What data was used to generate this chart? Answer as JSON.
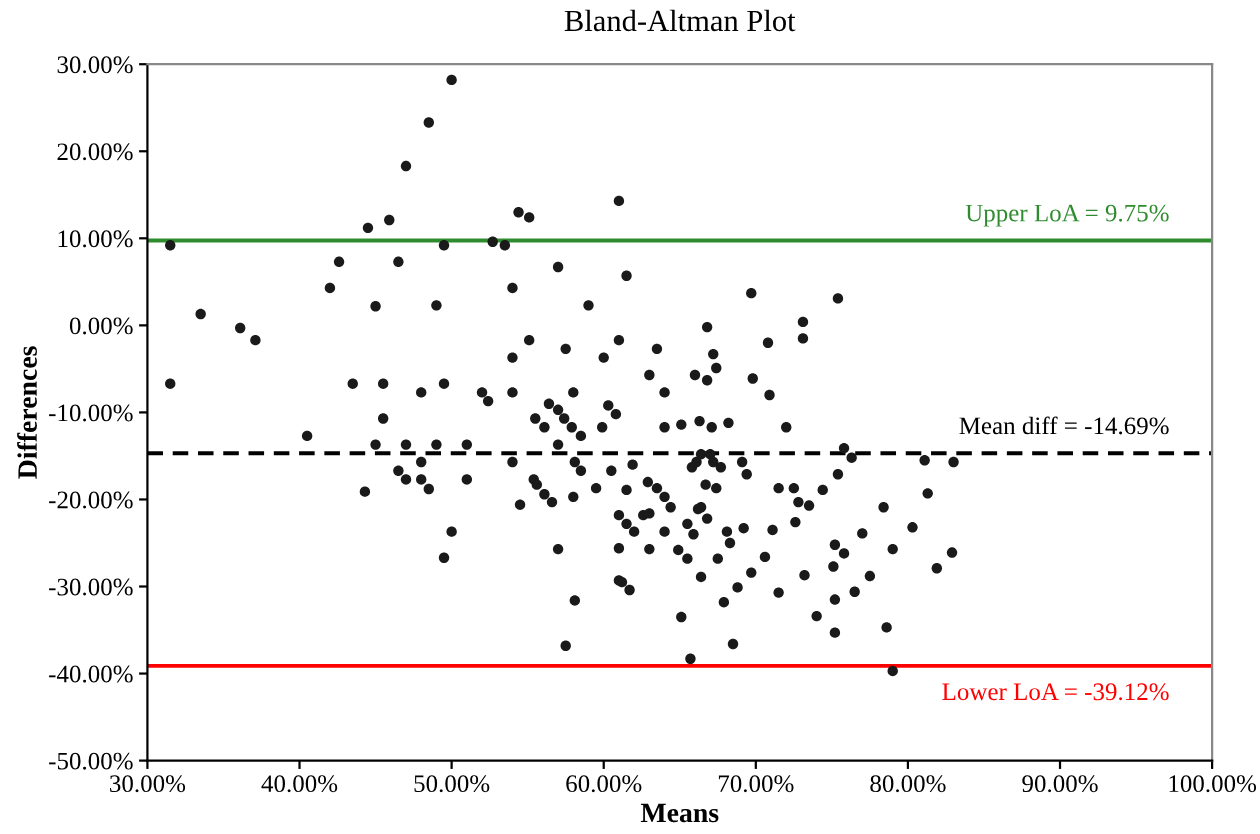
{
  "chart_data": {
    "type": "scatter",
    "title": "Bland-Altman Plot",
    "xlabel": "Means",
    "ylabel": "Differences",
    "xlim": [
      30,
      100
    ],
    "ylim": [
      -50,
      30
    ],
    "xticks": [
      {
        "value": 30,
        "label": "30.00%"
      },
      {
        "value": 40,
        "label": "40.00%"
      },
      {
        "value": 50,
        "label": "50.00%"
      },
      {
        "value": 60,
        "label": "60.00%"
      },
      {
        "value": 70,
        "label": "70.00%"
      },
      {
        "value": 80,
        "label": "80.00%"
      },
      {
        "value": 90,
        "label": "90.00%"
      },
      {
        "value": 100,
        "label": "100.00%"
      }
    ],
    "yticks": [
      {
        "value": -50,
        "label": "-50.00%"
      },
      {
        "value": -40,
        "label": "-40.00%"
      },
      {
        "value": -30,
        "label": "-30.00%"
      },
      {
        "value": -20,
        "label": "-20.00%"
      },
      {
        "value": -10,
        "label": "-10.00%"
      },
      {
        "value": 0,
        "label": "0.00%"
      },
      {
        "value": 10,
        "label": "10.00%"
      },
      {
        "value": 20,
        "label": "20.00%"
      },
      {
        "value": 30,
        "label": "30.00%"
      }
    ],
    "grid": false,
    "marker": "circle",
    "legend": false,
    "ref_lines": [
      {
        "axis": "y",
        "value": 9.75,
        "label": "Upper LoA = 9.75%",
        "color": "#2e8b2e",
        "line_style": "solid"
      },
      {
        "axis": "y",
        "value": -14.69,
        "label": "Mean diff = -14.69%",
        "color": "#000000",
        "line_style": "dashed"
      },
      {
        "axis": "y",
        "value": -39.12,
        "label": "Lower LoA = -39.12%",
        "color": "#ff0000",
        "line_style": "solid"
      }
    ],
    "series": [
      {
        "color": "#1a1a1a",
        "x": [
          31.5,
          33.5,
          36.1,
          37.1,
          31.5,
          42.0,
          42.6,
          43.5,
          44.5,
          45.0,
          45.5,
          45.9,
          46.5,
          47.0,
          48.0,
          48.5,
          49.0,
          49.5,
          49.5,
          50.0,
          52.0,
          54.4,
          55.1,
          61.0,
          52.7,
          53.5,
          57.0,
          61.5,
          54.0,
          59.0,
          69.7,
          66.8,
          73.1,
          55.1,
          57.5,
          61.0,
          63.5,
          60.0,
          54.0,
          67.2,
          70.8,
          73.1,
          67.4,
          63.0,
          66.0,
          66.8,
          69.8,
          54.0,
          58.0,
          64.0,
          70.9,
          75.4,
          52.4,
          40.5,
          45.5,
          45.0,
          47.0,
          49.0,
          51.0,
          48.0,
          46.5,
          47.0,
          48.0,
          51.0,
          48.5,
          44.3,
          50.0,
          49.5,
          56.4,
          57.0,
          55.5,
          56.1,
          57.4,
          57.9,
          58.5,
          59.9,
          60.3,
          60.8,
          64.0,
          65.1,
          66.3,
          67.1,
          68.2,
          72.0,
          57.0,
          54.0,
          58.1,
          58.5,
          60.5,
          61.9,
          65.8,
          66.1,
          66.4,
          67.0,
          67.2,
          67.7,
          69.1,
          69.4,
          55.4,
          55.6,
          56.1,
          56.6,
          54.5,
          58.0,
          59.5,
          61.5,
          62.9,
          63.5,
          64.0,
          64.4,
          66.7,
          67.4,
          66.4,
          66.2,
          66.8,
          61.0,
          61.5,
          62.0,
          62.6,
          63.0,
          64.0,
          65.5,
          65.9,
          68.1,
          69.2,
          71.1,
          72.5,
          72.8,
          72.6,
          71.5,
          57.0,
          61.0,
          63.0,
          64.9,
          65.5,
          68.3,
          67.5,
          66.4,
          69.7,
          70.6,
          68.8,
          67.9,
          71.5,
          73.2,
          61.0,
          61.2,
          61.7,
          58.1,
          65.1,
          57.5,
          68.5,
          65.7,
          75.8,
          76.3,
          75.4,
          73.5,
          74.4,
          81.1,
          83.0,
          78.4,
          81.3,
          80.3,
          77.0,
          75.2,
          75.8,
          79.0,
          82.9,
          81.9,
          75.1,
          77.5,
          76.5,
          75.2,
          74.0,
          75.2,
          78.6,
          79.0
        ],
        "values": [
          9.2,
          1.3,
          -0.3,
          -1.7,
          -6.7,
          4.3,
          7.3,
          -6.7,
          11.2,
          2.2,
          -6.7,
          12.1,
          7.3,
          18.3,
          -7.7,
          23.3,
          2.3,
          9.2,
          -6.7,
          28.2,
          -7.7,
          13.0,
          12.4,
          14.3,
          9.6,
          9.2,
          6.7,
          5.7,
          4.3,
          2.3,
          3.7,
          -0.2,
          0.4,
          -1.7,
          -2.7,
          -1.7,
          -2.7,
          -3.7,
          -3.7,
          -3.3,
          -2.0,
          -1.5,
          -4.9,
          -5.7,
          -5.7,
          -6.3,
          -6.1,
          -7.7,
          -7.7,
          -7.7,
          -8.0,
          3.1,
          -8.7,
          -12.7,
          -10.7,
          -13.7,
          -13.7,
          -13.7,
          -13.7,
          -15.7,
          -16.7,
          -17.7,
          -17.7,
          -17.7,
          -18.8,
          -19.1,
          -23.7,
          -26.7,
          -9.0,
          -9.7,
          -10.7,
          -11.7,
          -10.7,
          -11.7,
          -12.7,
          -11.7,
          -9.2,
          -10.2,
          -11.7,
          -11.4,
          -11.0,
          -11.7,
          -11.2,
          -11.7,
          -13.7,
          -15.7,
          -15.7,
          -16.7,
          -16.7,
          -16.0,
          -16.3,
          -15.7,
          -14.8,
          -14.8,
          -15.7,
          -16.3,
          -15.7,
          -17.1,
          -17.7,
          -18.3,
          -19.4,
          -20.3,
          -20.6,
          -19.7,
          -18.7,
          -18.9,
          -18.0,
          -18.7,
          -19.7,
          -20.9,
          -18.3,
          -18.7,
          -20.9,
          -21.1,
          -22.2,
          -21.8,
          -22.8,
          -23.7,
          -21.8,
          -21.6,
          -23.7,
          -22.8,
          -24.0,
          -23.7,
          -23.3,
          -23.5,
          -18.7,
          -20.3,
          -22.6,
          -18.7,
          -25.7,
          -25.6,
          -25.7,
          -25.8,
          -26.8,
          -25.0,
          -26.8,
          -28.9,
          -28.4,
          -26.6,
          -30.1,
          -31.8,
          -30.7,
          -28.7,
          -29.3,
          -29.5,
          -30.4,
          -31.6,
          -33.5,
          -36.8,
          -36.6,
          -38.3,
          -14.1,
          -15.2,
          -17.1,
          -20.7,
          -18.9,
          -15.5,
          -15.7,
          -20.9,
          -19.3,
          -23.2,
          -23.9,
          -25.2,
          -26.2,
          -25.7,
          -26.1,
          -27.9,
          -27.7,
          -28.8,
          -30.6,
          -31.5,
          -33.4,
          -35.3,
          -34.7,
          -39.7
        ]
      }
    ]
  }
}
